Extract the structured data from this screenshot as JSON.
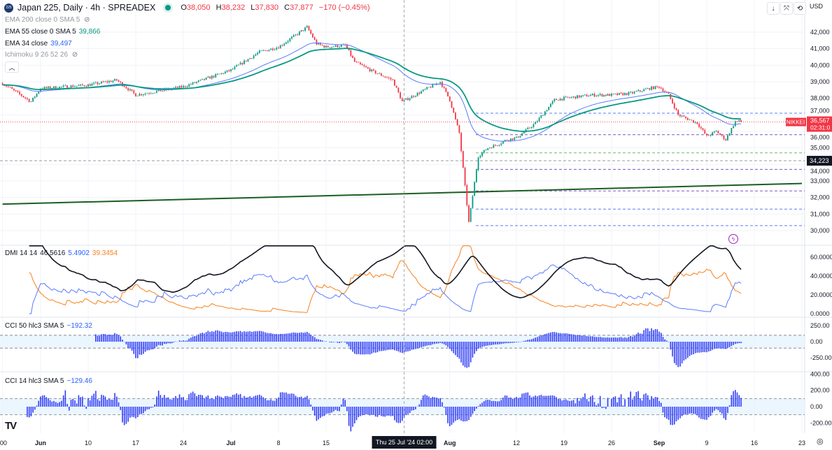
{
  "header": {
    "symbol_logo": "225",
    "title": "Japan 225, Daily · 4h · SPREADEX",
    "open_label": "O",
    "open": "38,050",
    "high_label": "H",
    "high": "38,232",
    "low_label": "L",
    "low": "37,830",
    "close_label": "C",
    "close": "37,877",
    "change": "−170 (−0.45%)"
  },
  "indicators": {
    "ema200": {
      "label": "EMA 200 close 0 SMA 5"
    },
    "ema55": {
      "label": "EMA 55 close 0 SMA 5",
      "value": "39,866"
    },
    "ema34": {
      "label": "EMA 34 close",
      "value": "39,497"
    },
    "ichimoku": {
      "label": "Ichimoku 9 26 52 26"
    },
    "dmi": {
      "label": "DMI 14 14",
      "adx": "46.5616",
      "plus_di": "5.4902",
      "minus_di": "39.3454"
    },
    "cci50": {
      "label": "CCI 50 hlc3 SMA 5",
      "value": "−192.32"
    },
    "cci14": {
      "label": "CCI 14 hlc3 SMA 5",
      "value": "−129.46"
    }
  },
  "toolbar": {
    "currency": "USD",
    "icons": [
      "arrow-down-icon",
      "collapse-icon",
      "reset-icon"
    ]
  },
  "price_label": {
    "tag": "NIKKEI",
    "price": "36,567",
    "countdown": "02:31:0"
  },
  "crosshair": {
    "date_label": "Thu 25 Jul '24",
    "time_label": "02:00",
    "price_label": "34,223"
  },
  "colors": {
    "up": "#089981",
    "down": "#f23645",
    "ema55": "#089981",
    "ema34": "#5b7cfa",
    "adx": "#131722",
    "plus_di": "#5b7cfa",
    "minus_di": "#f7801d",
    "cci": "#2f3cf7",
    "trendline": "#1b5e20"
  },
  "chart_data": {
    "type": "candlestick",
    "interval": "4h",
    "price_axis": {
      "ticks": [
        "30,000",
        "31,000",
        "32,000",
        "33,000",
        "34,000",
        "35,000",
        "36,000",
        "37,000",
        "38,000",
        "39,000",
        "40,000",
        "41,000",
        "42,000"
      ],
      "range": [
        29800,
        43000
      ]
    },
    "dmi_axis": {
      "ticks": [
        "0.0000",
        "20.0000",
        "40.0000",
        "60.0000"
      ]
    },
    "cci50_axis": {
      "ticks": [
        "-250.00",
        "0.00",
        "250.00"
      ]
    },
    "cci14_axis": {
      "ticks": [
        "-200.00",
        "0.00",
        "200.00",
        "400.00"
      ]
    },
    "x_ticks": [
      {
        "date": "2024-05-28",
        "label": ":00"
      },
      {
        "date": "2024-06-03",
        "label": "Jun",
        "bold": true
      },
      {
        "date": "2024-06-10",
        "label": "10"
      },
      {
        "date": "2024-06-17",
        "label": "17"
      },
      {
        "date": "2024-06-24",
        "label": "24"
      },
      {
        "date": "2024-07-01",
        "label": "Jul",
        "bold": true
      },
      {
        "date": "2024-07-08",
        "label": "8"
      },
      {
        "date": "2024-07-15",
        "label": "15"
      },
      {
        "date": "2024-08-01",
        "label": "Aug",
        "bold": true
      },
      {
        "date": "2024-08-12",
        "label": "12"
      },
      {
        "date": "2024-08-19",
        "label": "19"
      },
      {
        "date": "2024-08-26",
        "label": "26"
      },
      {
        "date": "2024-09-02",
        "label": "Sep",
        "bold": true
      },
      {
        "date": "2024-09-09",
        "label": "9"
      },
      {
        "date": "2024-09-16",
        "label": "16"
      },
      {
        "date": "2024-09-23",
        "label": "23"
      }
    ],
    "close_path": [
      [
        "2024-05-28",
        38900
      ],
      [
        "2024-05-31",
        37800
      ],
      [
        "2024-06-03",
        38600
      ],
      [
        "2024-06-10",
        38800
      ],
      [
        "2024-06-13",
        39100
      ],
      [
        "2024-06-17",
        38200
      ],
      [
        "2024-06-21",
        38600
      ],
      [
        "2024-06-24",
        38700
      ],
      [
        "2024-06-28",
        39500
      ],
      [
        "2024-07-01",
        39700
      ],
      [
        "2024-07-04",
        40800
      ],
      [
        "2024-07-08",
        41100
      ],
      [
        "2024-07-11",
        42300
      ],
      [
        "2024-07-12",
        41300
      ],
      [
        "2024-07-15",
        41100
      ],
      [
        "2024-07-17",
        41200
      ],
      [
        "2024-07-18",
        40200
      ],
      [
        "2024-07-22",
        39600
      ],
      [
        "2024-07-24",
        39100
      ],
      [
        "2024-07-25",
        37800
      ],
      [
        "2024-07-29",
        38400
      ],
      [
        "2024-07-31",
        39000
      ],
      [
        "2024-08-01",
        37900
      ],
      [
        "2024-08-02",
        35900
      ],
      [
        "2024-08-05",
        30500
      ],
      [
        "2024-08-06",
        34500
      ],
      [
        "2024-08-07",
        35000
      ],
      [
        "2024-08-08",
        35200
      ],
      [
        "2024-08-09",
        35500
      ],
      [
        "2024-08-12",
        35600
      ],
      [
        "2024-08-14",
        36500
      ],
      [
        "2024-08-16",
        37900
      ],
      [
        "2024-08-19",
        38000
      ],
      [
        "2024-08-22",
        38200
      ],
      [
        "2024-08-26",
        38200
      ],
      [
        "2024-08-28",
        38300
      ],
      [
        "2024-08-30",
        38600
      ],
      [
        "2024-09-02",
        38700
      ],
      [
        "2024-09-03",
        38200
      ],
      [
        "2024-09-04",
        37000
      ],
      [
        "2024-09-06",
        36500
      ],
      [
        "2024-09-09",
        35700
      ],
      [
        "2024-09-10",
        36000
      ],
      [
        "2024-09-11",
        35500
      ],
      [
        "2024-09-12",
        36600
      ]
    ],
    "last_price": 36567,
    "horizontal_levels": [
      {
        "price": 37100,
        "color": "#5b7cfa"
      },
      {
        "price": 35800,
        "color": "#7e57c2"
      },
      {
        "price": 34700,
        "color": "#66bb6a"
      },
      {
        "price": 34223,
        "color": "#9598a1"
      },
      {
        "price": 33700,
        "color": "#7e57c2"
      },
      {
        "price": 32400,
        "color": "#7e57c2"
      },
      {
        "price": 31300,
        "color": "#5b7cfa"
      },
      {
        "price": 30300,
        "color": "#5b7cfa"
      }
    ],
    "trendline": [
      [
        "2024-05-28",
        31600
      ],
      [
        "2024-09-23",
        32850
      ]
    ]
  }
}
